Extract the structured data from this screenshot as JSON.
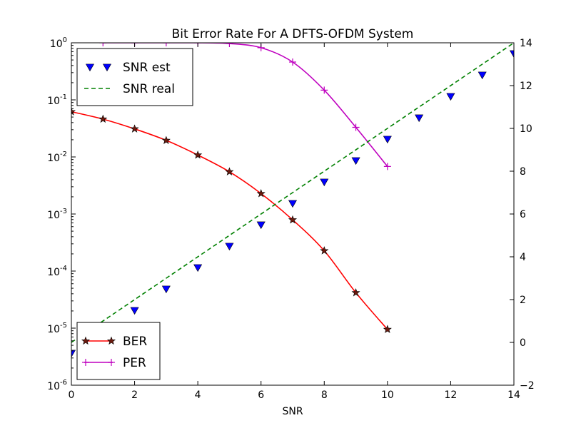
{
  "chart_data": {
    "type": "line",
    "title": "Bit Error Rate For A DFTS-OFDM System",
    "xlabel": "SNR",
    "ylabel": "",
    "y2label": "",
    "xlim": [
      0,
      14
    ],
    "ylim": [
      1e-06,
      1
    ],
    "y_scale": "log",
    "y2lim": [
      -2,
      14
    ],
    "grid": false,
    "x_ticks": [
      "0",
      "2",
      "4",
      "6",
      "8",
      "10",
      "12",
      "14"
    ],
    "y_ticks": [
      {
        "base": "10",
        "exp": "-6"
      },
      {
        "base": "10",
        "exp": "-5"
      },
      {
        "base": "10",
        "exp": "-4"
      },
      {
        "base": "10",
        "exp": "-3"
      },
      {
        "base": "10",
        "exp": "-2"
      },
      {
        "base": "10",
        "exp": "-1"
      },
      {
        "base": "10",
        "exp": "0"
      }
    ],
    "y2_ticks": [
      "−2",
      "0",
      "2",
      "4",
      "6",
      "8",
      "10",
      "12",
      "14"
    ],
    "series": [
      {
        "name": "BER",
        "axis": "left",
        "color": "#ff0000",
        "marker": "star",
        "marker_color": "#6b1a0e",
        "x": [
          0,
          1,
          2,
          3,
          4,
          5,
          6,
          7,
          8,
          9,
          10
        ],
        "values": [
          0.062,
          0.046,
          0.031,
          0.0195,
          0.0108,
          0.0055,
          0.00228,
          0.00079,
          0.000227,
          4.18e-05,
          9.5e-06
        ]
      },
      {
        "name": "PER",
        "axis": "left",
        "color": "#bf00bf",
        "marker": "plus",
        "x": [
          1,
          2,
          3,
          4,
          5,
          6,
          7,
          8,
          9,
          10
        ],
        "values": [
          1.0,
          1.0,
          1.0,
          1.0,
          0.97,
          0.82,
          0.46,
          0.148,
          0.033,
          0.0068
        ]
      },
      {
        "name": "SNR est",
        "axis": "right",
        "color": "#0000ff",
        "marker": "triangle_down",
        "x": [
          0,
          1,
          2,
          3,
          4,
          5,
          6,
          7,
          8,
          9,
          10,
          11,
          12,
          13,
          14
        ],
        "values": [
          -0.5,
          0.5,
          1.5,
          2.5,
          3.5,
          4.5,
          5.5,
          6.5,
          7.5,
          8.5,
          9.5,
          10.5,
          11.5,
          12.5,
          13.5
        ]
      },
      {
        "name": "SNR real",
        "axis": "right",
        "color": "#008000",
        "style": "dashed",
        "x": [
          0,
          14
        ],
        "values": [
          0,
          14
        ]
      }
    ],
    "legends": [
      {
        "placement": "upper-left",
        "entries": [
          "SNR est",
          "SNR real"
        ]
      },
      {
        "placement": "lower-left",
        "entries": [
          "BER",
          "PER"
        ]
      }
    ]
  }
}
